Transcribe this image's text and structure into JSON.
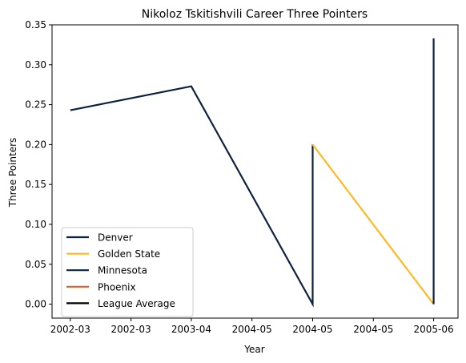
{
  "chart_data": {
    "type": "line",
    "title": "Nikoloz Tskitishvili Career Three Pointers",
    "xlabel": "Year",
    "ylabel": "Three Pointers",
    "x_tick_labels": [
      "2002-03",
      "2002-03",
      "2003-04",
      "2004-05",
      "2004-05",
      "2004-05",
      "2005-06"
    ],
    "ylim": [
      -0.0175,
      0.35
    ],
    "y_ticks": [
      "0.00",
      "0.05",
      "0.10",
      "0.15",
      "0.20",
      "0.25",
      "0.30",
      "0.35"
    ],
    "grid": false,
    "legend_position": "lower-left",
    "series": [
      {
        "name": "Denver",
        "color": "#0E2240",
        "points": [
          {
            "x": "2002-03",
            "y": 0.243
          },
          {
            "x": "2003-04",
            "y": 0.273
          },
          {
            "x": "2004-05",
            "y": 0.0
          },
          {
            "x": "2004-05",
            "y": 0.2
          }
        ]
      },
      {
        "name": "Golden State",
        "color": "#FDB927",
        "points": [
          {
            "x": "2004-05",
            "y": 0.2
          },
          {
            "x": "2005-06",
            "y": 0.0
          }
        ]
      },
      {
        "name": "Minnesota",
        "color": "#0C2340",
        "points": [
          {
            "x": "2005-06",
            "y": 0.0
          },
          {
            "x": "2005-06",
            "y": 0.333
          }
        ]
      },
      {
        "name": "Phoenix",
        "color": "#E56020",
        "points": []
      },
      {
        "name": "League Average",
        "color": "#000000",
        "points": []
      }
    ]
  }
}
